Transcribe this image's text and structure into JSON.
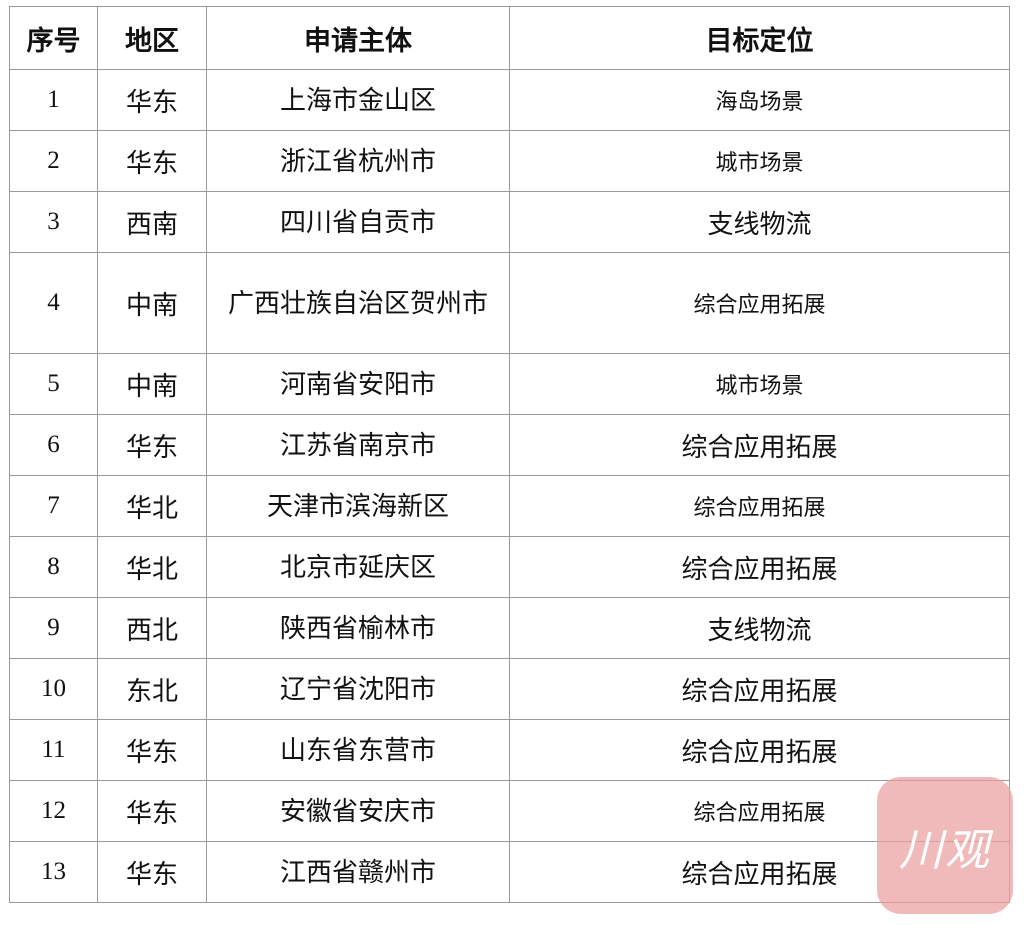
{
  "table": {
    "headers": [
      "序号",
      "地区",
      "申请主体",
      "目标定位"
    ],
    "rows": [
      [
        "1",
        "华东",
        "上海市金山区",
        "海岛场景"
      ],
      [
        "2",
        "华东",
        "浙江省杭州市",
        "城市场景"
      ],
      [
        "3",
        "西南",
        "四川省自贡市",
        "支线物流"
      ],
      [
        "4",
        "中南",
        "广西壮族自治区贺州市",
        "综合应用拓展"
      ],
      [
        "5",
        "中南",
        "河南省安阳市",
        "城市场景"
      ],
      [
        "6",
        "华东",
        "江苏省南京市",
        "综合应用拓展"
      ],
      [
        "7",
        "华北",
        "天津市滨海新区",
        "综合应用拓展"
      ],
      [
        "8",
        "华北",
        "北京市延庆区",
        "综合应用拓展"
      ],
      [
        "9",
        "西北",
        "陕西省榆林市",
        "支线物流"
      ],
      [
        "10",
        "东北",
        "辽宁省沈阳市",
        "综合应用拓展"
      ],
      [
        "11",
        "华东",
        "山东省东营市",
        "综合应用拓展"
      ],
      [
        "12",
        "华东",
        "安徽省安庆市",
        "综合应用拓展"
      ],
      [
        "13",
        "华东",
        "江西省赣州市",
        "综合应用拓展"
      ]
    ]
  },
  "watermark": {
    "text": "川观",
    "color": "#eca0a0"
  }
}
